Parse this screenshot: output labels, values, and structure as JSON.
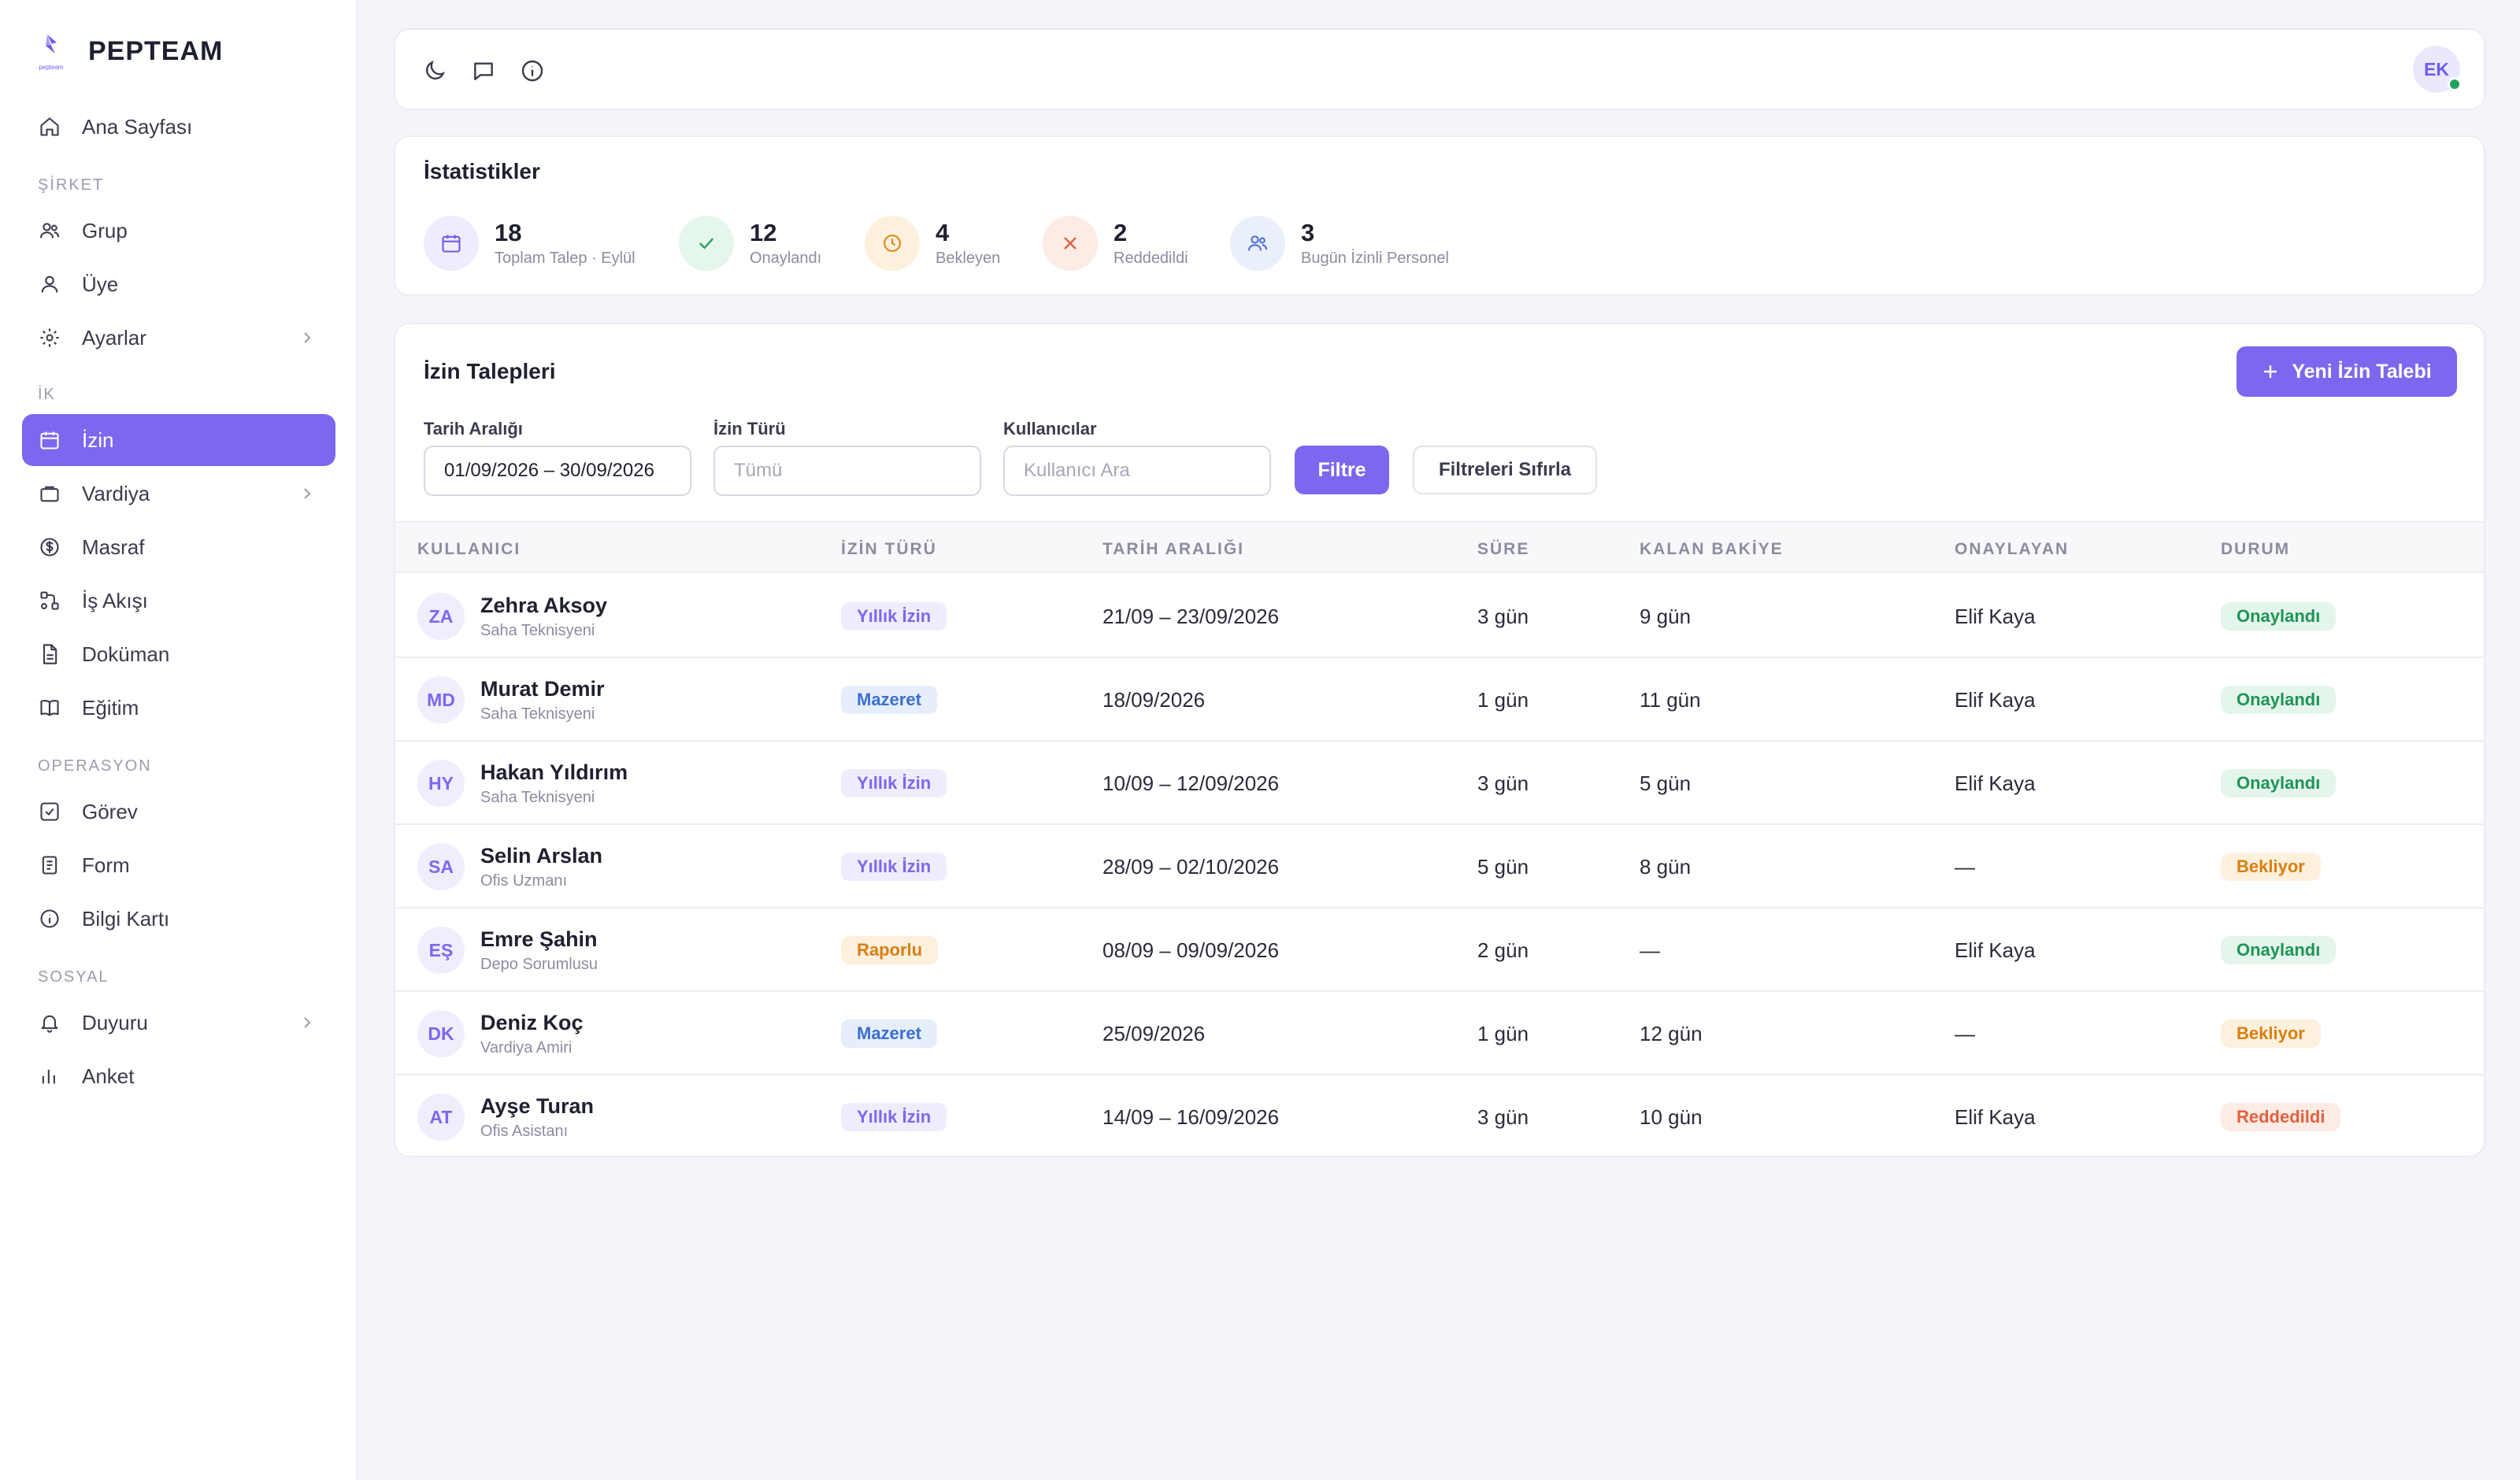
{
  "brand": {
    "name": "PEPTEAM",
    "logo_caption": "pepteam"
  },
  "nav": {
    "home": "Ana Sayfası",
    "sections": {
      "company": "ŞİRKET",
      "hr": "İK",
      "operations": "OPERASYON",
      "social": "SOSYAL"
    },
    "company_items": [
      "Grup",
      "Üye",
      "Ayarlar"
    ],
    "hr_items": [
      "İzin",
      "Vardiya",
      "Masraf",
      "İş Akışı",
      "Doküman",
      "Eğitim"
    ],
    "operations_items": [
      "Görev",
      "Form",
      "Bilgi Kartı"
    ],
    "social_items": [
      "Duyuru",
      "Anket"
    ],
    "active": "İzin"
  },
  "topbar": {
    "user_initials": "EK",
    "icons": [
      "moon-icon",
      "chat-icon",
      "info-icon"
    ]
  },
  "stats": {
    "title": "İstatistikler",
    "items": [
      {
        "value": "18",
        "label": "Toplam Talep · Eylül",
        "icon": "calendar-icon",
        "color": "#6d5ce8",
        "bg": "#efedfd"
      },
      {
        "value": "12",
        "label": "Onaylandı",
        "icon": "check-icon",
        "color": "#22a061",
        "bg": "#e5f6ec"
      },
      {
        "value": "4",
        "label": "Bekleyen",
        "icon": "clock-icon",
        "color": "#e08a16",
        "bg": "#fdf1dd"
      },
      {
        "value": "2",
        "label": "Reddedildi",
        "icon": "x-icon",
        "color": "#e2613e",
        "bg": "#fdebe6"
      },
      {
        "value": "3",
        "label": "Bugün İzinli Personel",
        "icon": "users-icon",
        "color": "#4f70d6",
        "bg": "#eaeffc"
      }
    ]
  },
  "leave": {
    "title": "İzin Talepleri",
    "new_button": "Yeni İzin Talebi",
    "filters": {
      "date_label": "Tarih Aralığı",
      "date_value": "01/09/2026 – 30/09/2026",
      "type_label": "İzin Türü",
      "type_placeholder": "Tümü",
      "users_label": "Kullanıcılar",
      "users_placeholder": "Kullanıcı Ara",
      "filter_button": "Filtre",
      "reset_button": "Filtreleri Sıfırla"
    },
    "columns": [
      "KULLANICI",
      "İZİN TÜRÜ",
      "TARİH ARALIĞI",
      "SÜRE",
      "KALAN BAKİYE",
      "ONAYLAYAN",
      "DURUM"
    ],
    "rows": [
      {
        "initials": "ZA",
        "name": "Zehra Aksoy",
        "role": "Saha Teknisyeni",
        "type": "Yıllık İzin",
        "range": "21/09 – 23/09/2026",
        "duration": "3 gün",
        "balance": "9 gün",
        "approver": "Elif Kaya",
        "status": "Onaylandı"
      },
      {
        "initials": "MD",
        "name": "Murat Demir",
        "role": "Saha Teknisyeni",
        "type": "Mazeret",
        "range": "18/09/2026",
        "duration": "1 gün",
        "balance": "11 gün",
        "approver": "Elif Kaya",
        "status": "Onaylandı"
      },
      {
        "initials": "HY",
        "name": "Hakan Yıldırım",
        "role": "Saha Teknisyeni",
        "type": "Yıllık İzin",
        "range": "10/09 – 12/09/2026",
        "duration": "3 gün",
        "balance": "5 gün",
        "approver": "Elif Kaya",
        "status": "Onaylandı"
      },
      {
        "initials": "SA",
        "name": "Selin Arslan",
        "role": "Ofis Uzmanı",
        "type": "Yıllık İzin",
        "range": "28/09 – 02/10/2026",
        "duration": "5 gün",
        "balance": "8 gün",
        "approver": "—",
        "status": "Bekliyor"
      },
      {
        "initials": "EŞ",
        "name": "Emre Şahin",
        "role": "Depo Sorumlusu",
        "type": "Raporlu",
        "range": "08/09 – 09/09/2026",
        "duration": "2 gün",
        "balance": "—",
        "approver": "Elif Kaya",
        "status": "Onaylandı"
      },
      {
        "initials": "DK",
        "name": "Deniz Koç",
        "role": "Vardiya Amiri",
        "type": "Mazeret",
        "range": "25/09/2026",
        "duration": "1 gün",
        "balance": "12 gün",
        "approver": "—",
        "status": "Bekliyor"
      },
      {
        "initials": "AT",
        "name": "Ayşe Turan",
        "role": "Ofis Asistanı",
        "type": "Yıllık İzin",
        "range": "14/09 – 16/09/2026",
        "duration": "3 gün",
        "balance": "10 gün",
        "approver": "Elif Kaya",
        "status": "Reddedildi"
      }
    ],
    "type_colors": {
      "Yıllık İzin": {
        "fg": "#7b68ee",
        "bg": "#efedfd"
      },
      "Mazeret": {
        "fg": "#3a6fd0",
        "bg": "#e6eefb"
      },
      "Raporlu": {
        "fg": "#d97f12",
        "bg": "#fdf0dc"
      }
    },
    "status_colors": {
      "Onaylandı": {
        "fg": "#1e9457",
        "bg": "#e4f5eb"
      },
      "Bekliyor": {
        "fg": "#d97f12",
        "bg": "#fdf0dc"
      },
      "Reddedildi": {
        "fg": "#e2613e",
        "bg": "#fdebe6"
      }
    }
  }
}
